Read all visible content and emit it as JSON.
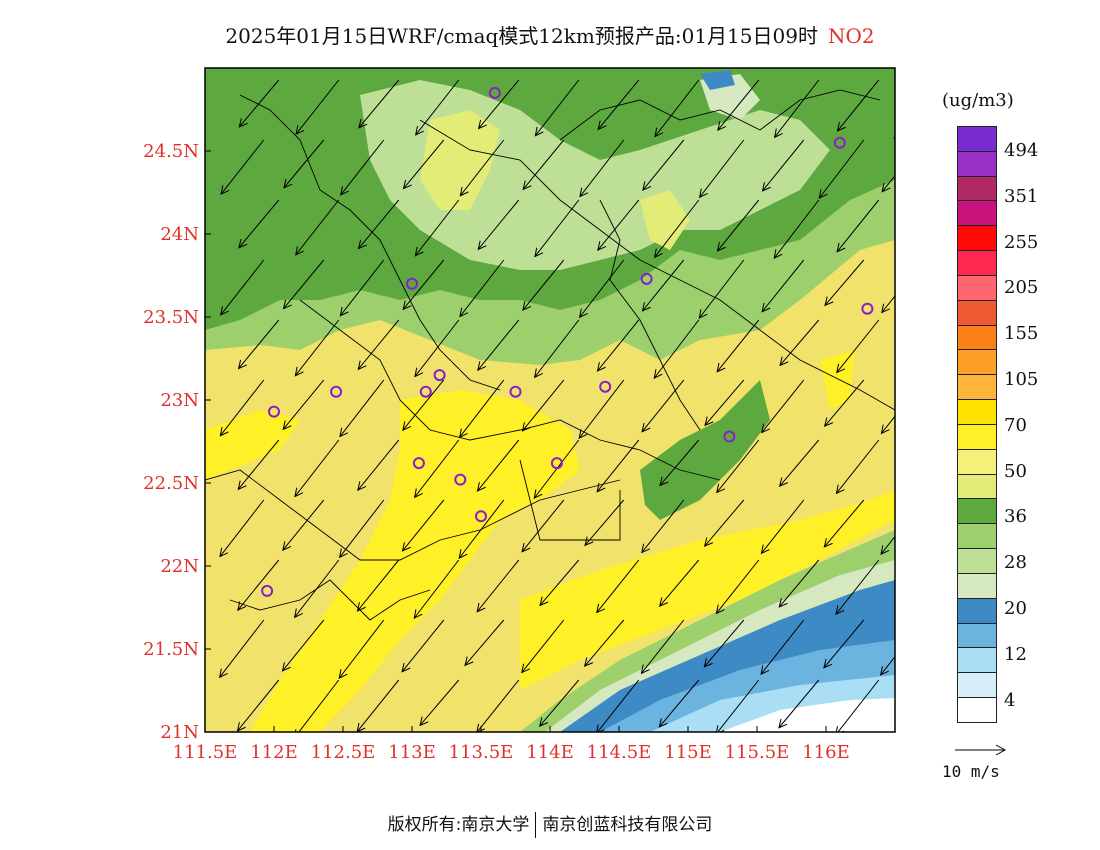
{
  "title": {
    "text": "2025年01月15日WRF/cmaq模式12km预报产品:01月15日09时",
    "species": "NO2"
  },
  "colors": {
    "axis_label": "#e0302a",
    "station_marker": "#8a1fc8",
    "title_species": "#e0302a"
  },
  "axes": {
    "x_labels": [
      "111.5E",
      "112E",
      "112.5E",
      "113E",
      "113.5E",
      "114E",
      "114.5E",
      "115E",
      "115.5E",
      "116E"
    ],
    "y_labels": [
      "21N",
      "21.5N",
      "22N",
      "22.5N",
      "23N",
      "23.5N",
      "24N",
      "24.5N"
    ],
    "lon_range": [
      111.5,
      116.5
    ],
    "lat_range": [
      21,
      25
    ]
  },
  "colorbar": {
    "unit": "(ug/m3)",
    "labels": [
      "494",
      "351",
      "255",
      "205",
      "155",
      "105",
      "70",
      "50",
      "36",
      "28",
      "20",
      "12",
      "4"
    ],
    "colors": [
      "#ffffff",
      "#d6eefa",
      "#a9def5",
      "#6cb4e0",
      "#3e8ac4",
      "#d6e8c0",
      "#bde096",
      "#9dd06c",
      "#5ea840",
      "#e4ec78",
      "#f6f07a",
      "#fff028",
      "#ffe100",
      "#fcb43a",
      "#fca02a",
      "#fc8018",
      "#f05a32",
      "#ff6670",
      "#ff2850",
      "#ff0a0a",
      "#c8147c",
      "#b02864",
      "#9a30c8",
      "#7a2cd0"
    ]
  },
  "wind_key": {
    "label": "10 m/s"
  },
  "stations": [
    {
      "lon": 113.6,
      "lat": 24.85
    },
    {
      "lon": 116.1,
      "lat": 24.55
    },
    {
      "lon": 113.0,
      "lat": 23.7
    },
    {
      "lon": 114.7,
      "lat": 23.73
    },
    {
      "lon": 116.3,
      "lat": 23.55
    },
    {
      "lon": 113.2,
      "lat": 23.15
    },
    {
      "lon": 112.45,
      "lat": 23.05
    },
    {
      "lon": 113.1,
      "lat": 23.05
    },
    {
      "lon": 113.75,
      "lat": 23.05
    },
    {
      "lon": 114.4,
      "lat": 23.08
    },
    {
      "lon": 112.0,
      "lat": 22.93
    },
    {
      "lon": 115.3,
      "lat": 22.78
    },
    {
      "lon": 113.05,
      "lat": 22.62
    },
    {
      "lon": 113.35,
      "lat": 22.52
    },
    {
      "lon": 114.05,
      "lat": 22.62
    },
    {
      "lon": 113.5,
      "lat": 22.3
    },
    {
      "lon": 111.95,
      "lat": 21.85
    }
  ],
  "footer": {
    "left": "版权所有:南京大学",
    "right": "南京创蓝科技有限公司"
  }
}
